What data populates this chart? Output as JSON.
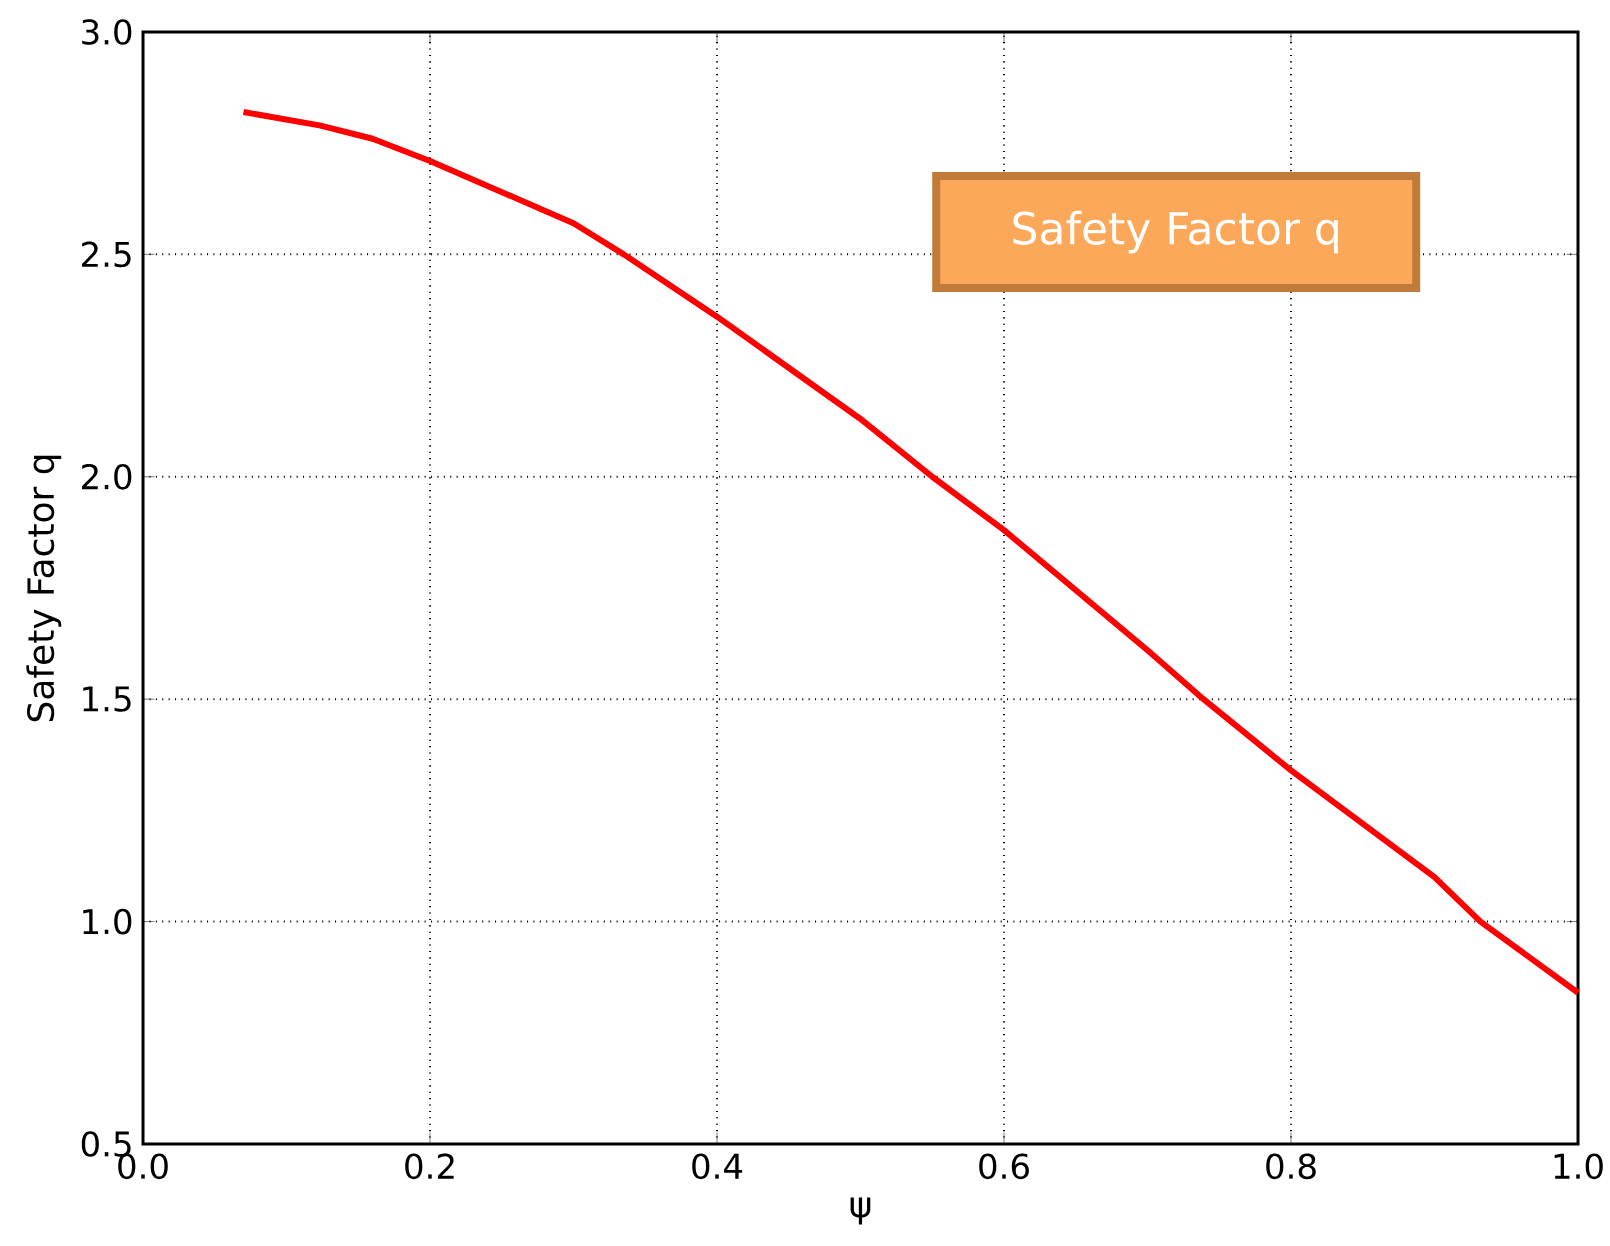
{
  "chart_data": {
    "type": "line",
    "xlabel": "ψ",
    "ylabel": "Safety Factor q",
    "annotations": [
      "Safety Factor q"
    ],
    "x": [
      0.07,
      0.123,
      0.16,
      0.2,
      0.3,
      0.335,
      0.4,
      0.5,
      0.55,
      0.6,
      0.7,
      0.739,
      0.8,
      0.9,
      0.932,
      1.0
    ],
    "series": [
      {
        "color": "#ff0000",
        "values": [
          2.82,
          2.79,
          2.76,
          2.71,
          2.57,
          2.5,
          2.36,
          2.13,
          2.0,
          1.88,
          1.61,
          1.5,
          1.34,
          1.1,
          1.0,
          0.84
        ]
      }
    ],
    "xlim": [
      0.0,
      1.0
    ],
    "ylim": [
      0.5,
      3.0
    ],
    "xticks": [
      {
        "value": 0.0,
        "label": "0.0"
      },
      0.2,
      0.4,
      0.6,
      0.8,
      {
        "value": 1.0,
        "label": "1.0"
      }
    ],
    "yticks": [
      {
        "value": 0.5,
        "label": "0.5"
      },
      {
        "value": 1.0,
        "label": "1.0"
      },
      1.5,
      {
        "value": 2.0,
        "label": "2.0"
      },
      2.5,
      {
        "value": 3.0,
        "label": "3.0"
      }
    ],
    "grid": true,
    "line_style": "solid",
    "marker": "none"
  }
}
